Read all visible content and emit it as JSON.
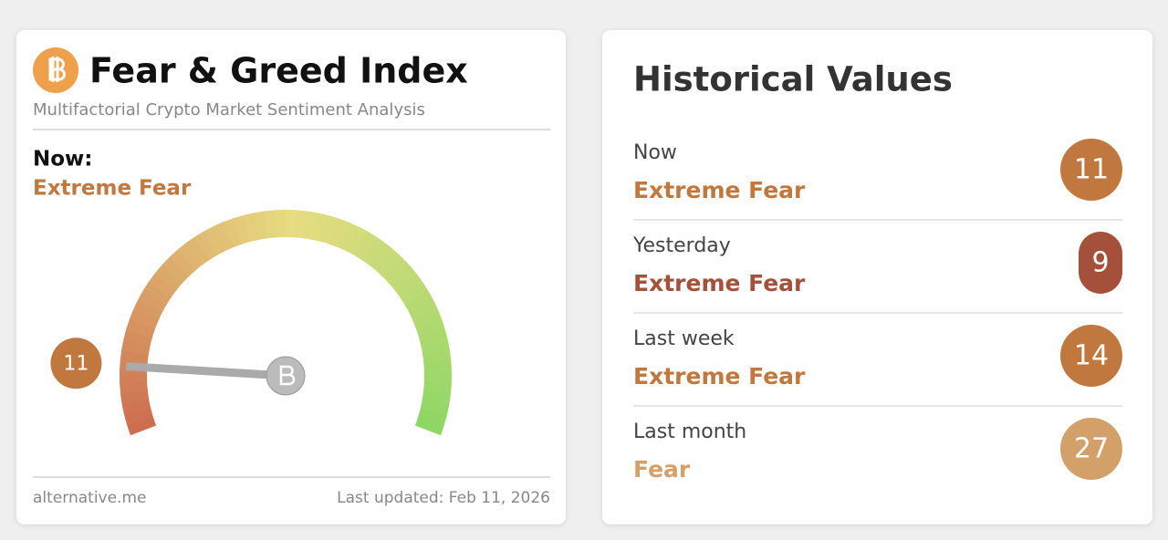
{
  "index_card": {
    "title": "Fear & Greed Index",
    "subtitle": "Multifactorial Crypto Market Sentiment Analysis",
    "now_label": "Now:",
    "now_classification": "Extreme Fear",
    "classification_color": "#c0783e",
    "value": 11,
    "gauge_range": [
      0,
      100
    ],
    "footer_source": "alternative.me",
    "footer_updated": "Last updated: Feb 11, 2026"
  },
  "historical": {
    "title": "Historical Values",
    "rows": [
      {
        "period": "Now",
        "classification": "Extreme Fear",
        "value": 11,
        "color": "#c0783e"
      },
      {
        "period": "Yesterday",
        "classification": "Extreme Fear",
        "value": 9,
        "color": "#a4503a"
      },
      {
        "period": "Last week",
        "classification": "Extreme Fear",
        "value": 14,
        "color": "#c0783e"
      },
      {
        "period": "Last month",
        "classification": "Fear",
        "value": 27,
        "color": "#d4a06a"
      }
    ]
  }
}
